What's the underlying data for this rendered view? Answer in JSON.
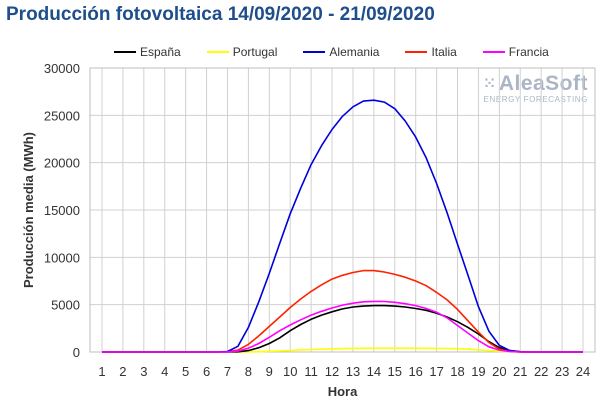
{
  "header": {
    "title": "Producción fotovoltaica 14/09/2020 - 21/09/2020"
  },
  "watermark": {
    "brand": "AleaSoft",
    "subtitle": "ENERGY FORECASTING",
    "dots_icon": "grid-dots-icon"
  },
  "chart_data": {
    "type": "line",
    "title": "Producción fotovoltaica 14/09/2020 - 21/09/2020",
    "xlabel": "Hora",
    "ylabel": "Producción media (MWh)",
    "ylim": [
      0,
      30000
    ],
    "yticks": [
      "0",
      "5000",
      "10000",
      "15000",
      "20000",
      "25000",
      "30000"
    ],
    "xlim": [
      1,
      24
    ],
    "categories": [
      "1",
      "2",
      "3",
      "4",
      "5",
      "6",
      "7",
      "8",
      "9",
      "10",
      "11",
      "12",
      "13",
      "14",
      "15",
      "16",
      "17",
      "18",
      "19",
      "20",
      "21",
      "22",
      "23",
      "24"
    ],
    "grid": true,
    "legend_position": "top",
    "series": [
      {
        "name": "España",
        "color": "#000000",
        "x": [
          1,
          2,
          3,
          4,
          5,
          6,
          6.5,
          7,
          7.5,
          8,
          8.5,
          9,
          9.5,
          10,
          10.5,
          11,
          11.5,
          12,
          12.5,
          13,
          13.5,
          14,
          14.5,
          15,
          15.5,
          16,
          16.5,
          17,
          17.5,
          18,
          18.5,
          19,
          19.5,
          20,
          20.5,
          21,
          21.5,
          22,
          23,
          24
        ],
        "values": [
          0,
          0,
          0,
          0,
          0,
          0,
          0,
          0,
          20,
          150,
          450,
          900,
          1500,
          2250,
          2900,
          3450,
          3900,
          4250,
          4550,
          4750,
          4850,
          4900,
          4900,
          4850,
          4750,
          4600,
          4400,
          4100,
          3700,
          3200,
          2600,
          1900,
          1100,
          450,
          150,
          30,
          0,
          0,
          0,
          0
        ]
      },
      {
        "name": "Portugal",
        "color": "#ffff00",
        "x": [
          1,
          2,
          3,
          4,
          5,
          6,
          7,
          7.5,
          8,
          8.5,
          9,
          9.5,
          10,
          10.5,
          11,
          11.5,
          12,
          12.5,
          13,
          13.5,
          14,
          14.5,
          15,
          15.5,
          16,
          16.5,
          17,
          17.5,
          18,
          18.5,
          19,
          19.5,
          20,
          20.5,
          21,
          22,
          23,
          24
        ],
        "values": [
          0,
          0,
          0,
          0,
          0,
          0,
          0,
          0,
          10,
          30,
          70,
          120,
          170,
          220,
          260,
          300,
          330,
          360,
          380,
          395,
          400,
          405,
          405,
          405,
          400,
          395,
          385,
          370,
          350,
          300,
          230,
          150,
          80,
          30,
          0,
          0,
          0,
          0
        ]
      },
      {
        "name": "Alemania",
        "color": "#0000dd",
        "x": [
          1,
          2,
          3,
          4,
          5,
          6,
          6.5,
          7,
          7.5,
          8,
          8.5,
          9,
          9.5,
          10,
          10.5,
          11,
          11.5,
          12,
          12.5,
          13,
          13.5,
          14,
          14.5,
          15,
          15.5,
          16,
          16.5,
          17,
          17.5,
          18,
          18.5,
          19,
          19.5,
          20,
          20.5,
          21,
          22,
          23,
          24
        ],
        "values": [
          0,
          0,
          0,
          0,
          0,
          0,
          0,
          50,
          600,
          2600,
          5300,
          8300,
          11500,
          14600,
          17300,
          19800,
          21800,
          23500,
          24900,
          25900,
          26500,
          26600,
          26400,
          25700,
          24400,
          22700,
          20500,
          17800,
          14700,
          11400,
          8100,
          4800,
          2200,
          700,
          150,
          0,
          0,
          0,
          0
        ]
      },
      {
        "name": "Italia",
        "color": "#ff2200",
        "x": [
          1,
          2,
          3,
          4,
          5,
          6,
          6.5,
          7,
          7.5,
          8,
          8.5,
          9,
          9.5,
          10,
          10.5,
          11,
          11.5,
          12,
          12.5,
          13,
          13.5,
          14,
          14.5,
          15,
          15.5,
          16,
          16.5,
          17,
          17.5,
          18,
          18.5,
          19,
          19.5,
          20,
          20.5,
          21,
          22,
          23,
          24
        ],
        "values": [
          0,
          0,
          0,
          0,
          0,
          0,
          0,
          20,
          200,
          800,
          1700,
          2700,
          3700,
          4700,
          5600,
          6400,
          7100,
          7700,
          8100,
          8400,
          8600,
          8600,
          8450,
          8200,
          7900,
          7500,
          7000,
          6300,
          5500,
          4500,
          3300,
          2100,
          1000,
          300,
          50,
          0,
          0,
          0,
          0
        ]
      },
      {
        "name": "Francia",
        "color": "#ff00ff",
        "x": [
          1,
          2,
          3,
          4,
          5,
          6,
          6.5,
          7,
          7.5,
          8,
          8.5,
          9,
          9.5,
          10,
          10.5,
          11,
          11.5,
          12,
          12.5,
          13,
          13.5,
          14,
          14.5,
          15,
          15.5,
          16,
          16.5,
          17,
          17.5,
          18,
          18.5,
          19,
          19.5,
          20,
          20.5,
          21,
          22,
          23,
          24
        ],
        "values": [
          0,
          0,
          0,
          0,
          0,
          0,
          0,
          10,
          100,
          400,
          900,
          1550,
          2250,
          2850,
          3400,
          3900,
          4300,
          4650,
          4950,
          5150,
          5300,
          5350,
          5330,
          5250,
          5100,
          4900,
          4600,
          4200,
          3600,
          2800,
          2000,
          1200,
          550,
          200,
          50,
          0,
          0,
          0,
          0
        ]
      }
    ]
  }
}
